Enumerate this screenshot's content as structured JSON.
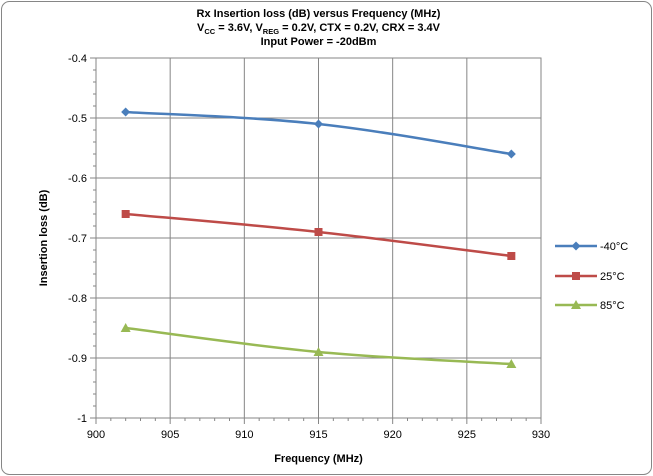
{
  "chart_data": {
    "type": "line",
    "title_lines": [
      [
        {
          "t": "Rx Insertion loss (dB) versus Frequency (MHz)"
        }
      ],
      [
        {
          "t": "V"
        },
        {
          "t": "CC",
          "sub": true
        },
        {
          "t": " = 3.6V, V"
        },
        {
          "t": "REG",
          "sub": true
        },
        {
          "t": " = 0.2V, CTX = 0.2V, CRX = 3.4V"
        }
      ],
      [
        {
          "t": "Input Power = -20dBm"
        }
      ]
    ],
    "xlabel": "Frequency (MHz)",
    "ylabel": "Insertion loss (dB)",
    "xlim": [
      900,
      930
    ],
    "ylim": [
      -1,
      -0.4
    ],
    "xticks": [
      900,
      905,
      910,
      915,
      920,
      925,
      930
    ],
    "xtick_labels": [
      "900",
      "905",
      "910",
      "915",
      "920",
      "925",
      "930"
    ],
    "yticks": [
      -1,
      -0.9,
      -0.8,
      -0.7,
      -0.6,
      -0.5,
      -0.4
    ],
    "ytick_labels": [
      "-1",
      "-0.9",
      "-0.8",
      "-0.7",
      "-0.6",
      "-0.5",
      "-0.4"
    ],
    "grid": true,
    "legend_position": "right",
    "series": [
      {
        "name": "-40°C",
        "color": "#4A7EBB",
        "marker": "diamond",
        "x": [
          902,
          915,
          928
        ],
        "y": [
          -0.49,
          -0.51,
          -0.56
        ]
      },
      {
        "name": "25°C",
        "color": "#BE4B48",
        "marker": "square",
        "x": [
          902,
          915,
          928
        ],
        "y": [
          -0.66,
          -0.69,
          -0.73
        ]
      },
      {
        "name": "85°C",
        "color": "#98B954",
        "marker": "triangle",
        "x": [
          902,
          915,
          928
        ],
        "y": [
          -0.85,
          -0.89,
          -0.91
        ]
      }
    ]
  }
}
